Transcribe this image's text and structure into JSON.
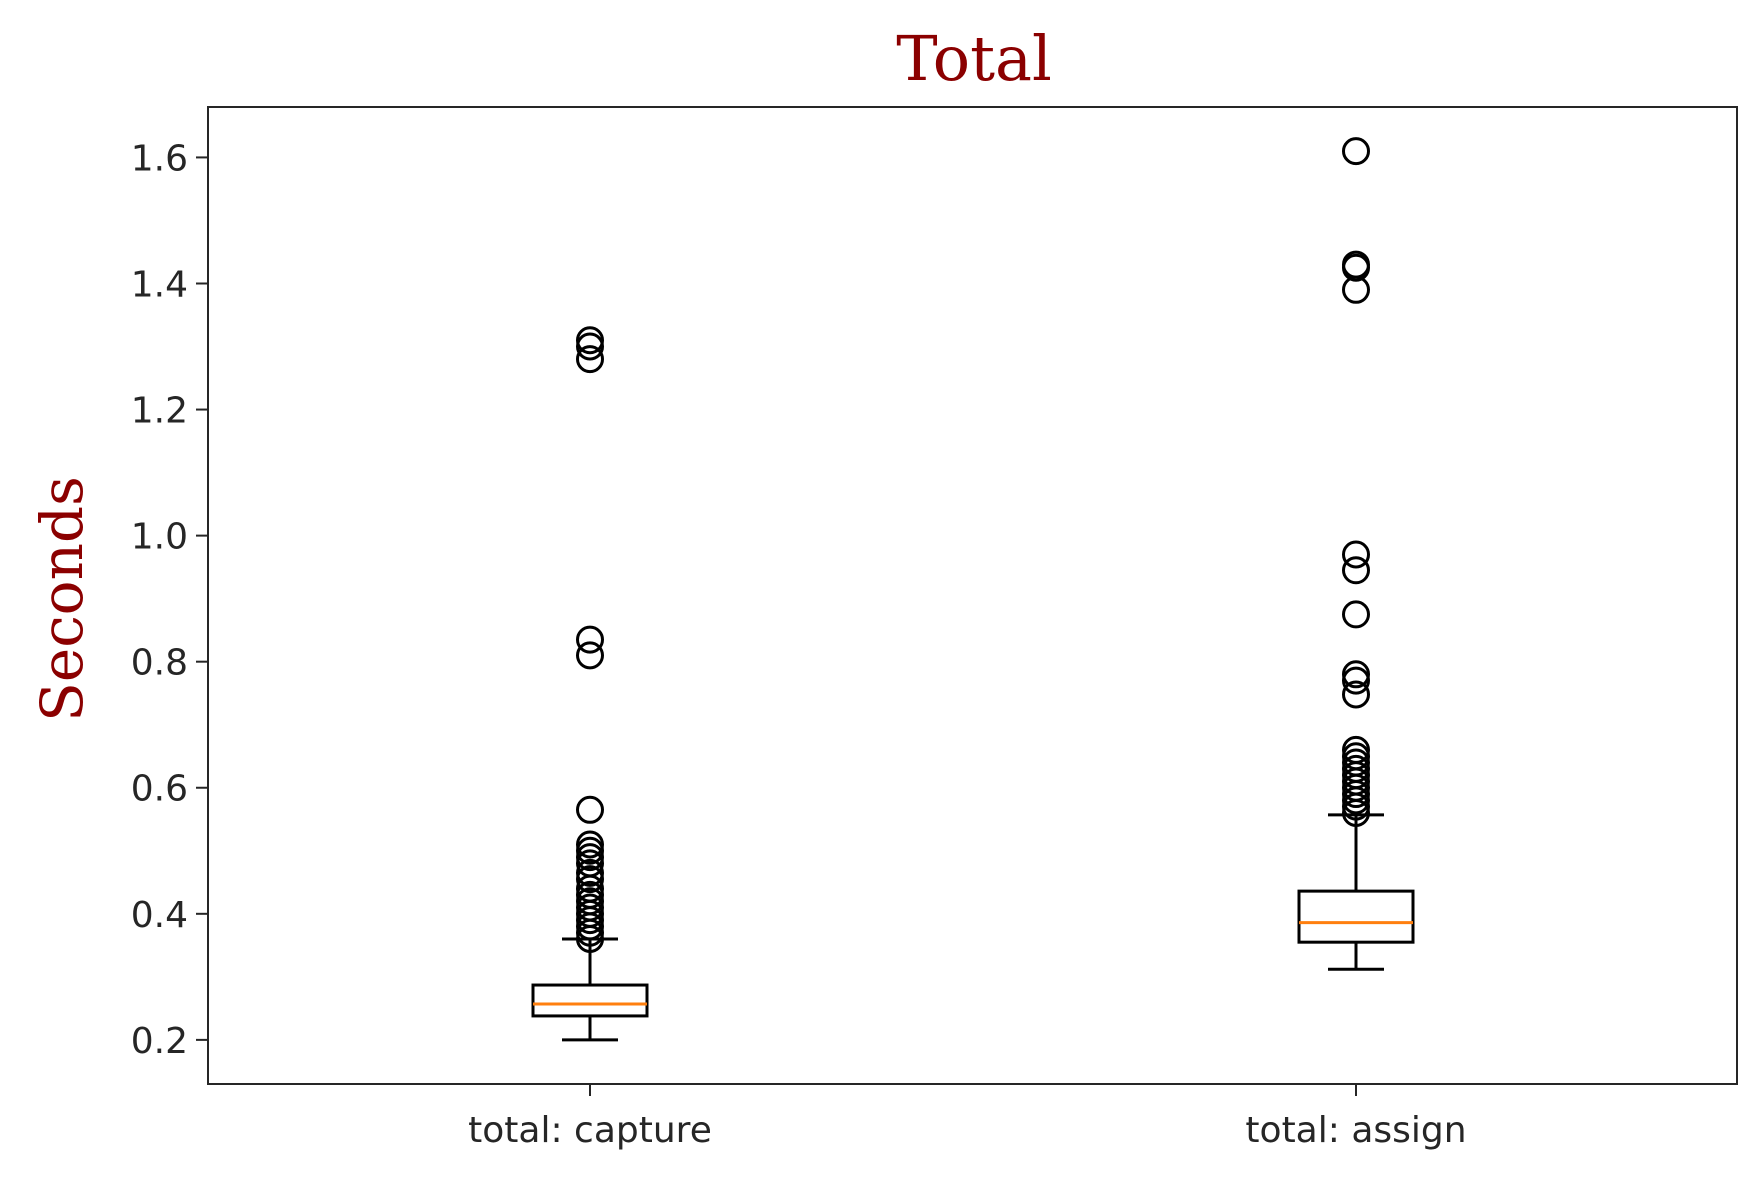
{
  "chart_data": {
    "type": "box",
    "title": "Total",
    "xlabel": "",
    "ylabel": "Seconds",
    "ylim": [
      0.13,
      1.68
    ],
    "yticks": [
      "0.2",
      "0.4",
      "0.6",
      "0.8",
      "1.0",
      "1.2",
      "1.4",
      "1.6"
    ],
    "grid": false,
    "colors": {
      "title": "#8b0000",
      "median": "#ff7f0e",
      "box": "#000000"
    },
    "categories": [
      "total: capture",
      "total: assign"
    ],
    "boxes": [
      {
        "category": "total: capture",
        "whisker_low": 0.2,
        "q1": 0.238,
        "median": 0.257,
        "q3": 0.287,
        "whisker_high": 0.36,
        "outliers": [
          1.31,
          1.3,
          1.28,
          0.835,
          0.81,
          0.565,
          0.51,
          0.5,
          0.49,
          0.48,
          0.465,
          0.455,
          0.44,
          0.43,
          0.42,
          0.41,
          0.4,
          0.39,
          0.38,
          0.37,
          0.36
        ]
      },
      {
        "category": "total: assign",
        "whisker_low": 0.312,
        "q1": 0.355,
        "median": 0.386,
        "q3": 0.436,
        "whisker_high": 0.557,
        "outliers": [
          1.61,
          1.43,
          1.425,
          1.39,
          0.97,
          0.945,
          0.875,
          0.78,
          0.77,
          0.748,
          0.66,
          0.65,
          0.64,
          0.63,
          0.62,
          0.61,
          0.6,
          0.59,
          0.58,
          0.57,
          0.56
        ]
      }
    ]
  }
}
